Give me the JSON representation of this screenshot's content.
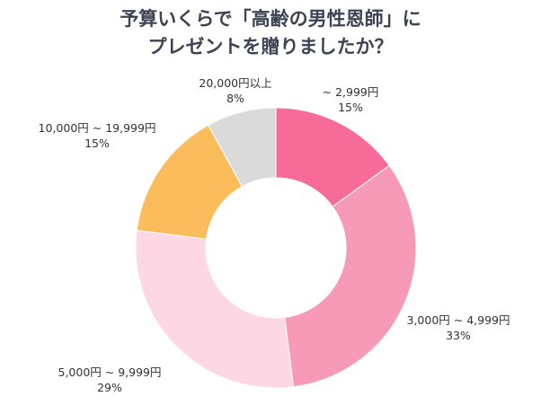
{
  "chart_data": {
    "type": "pie",
    "donut": true,
    "title_lines": [
      "予算いくらで「高齢の男性恩師」に",
      "プレゼントを贈りましたか？"
    ],
    "categories": [
      "~ 2,999円",
      "3,000円 ~ 4,999円",
      "5,000円 ~ 9,999円",
      "10,000円 ~ 19,999円",
      "20,000円以上"
    ],
    "values": [
      15,
      33,
      29,
      15,
      8
    ],
    "value_labels": [
      "15%",
      "33%",
      "29%",
      "15%",
      "8%"
    ],
    "colors": [
      "#f76b98",
      "#f79ab7",
      "#fdd7e3",
      "#fbbd5b",
      "#dadada"
    ],
    "start": "top",
    "direction": "clockwise",
    "legend": "none"
  }
}
